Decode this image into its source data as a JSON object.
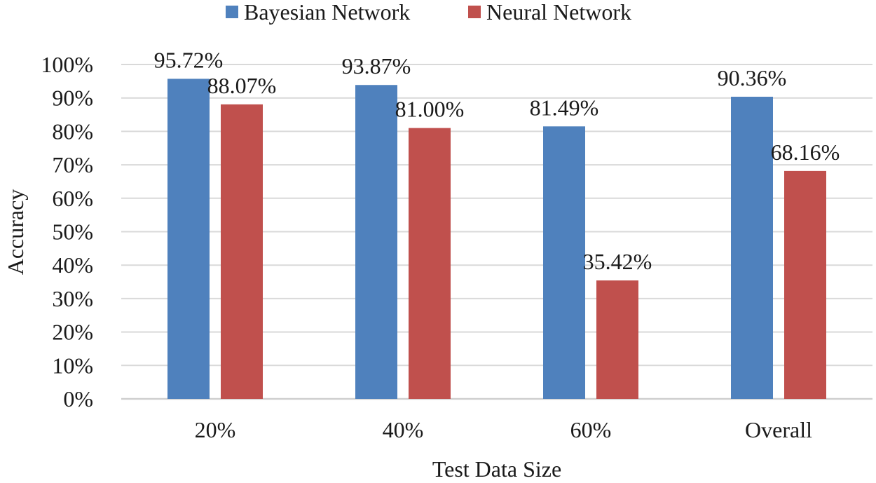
{
  "chart_data": {
    "type": "bar",
    "xlabel": "Test Data Size",
    "ylabel": "Accuracy",
    "categories": [
      "20%",
      "40%",
      "60%",
      "Overall"
    ],
    "series": [
      {
        "name": "Bayesian Network",
        "color": "#4F81BD",
        "values": [
          95.72,
          93.87,
          81.49,
          90.36
        ],
        "labels": [
          "95.72%",
          "93.87%",
          "81.49%",
          "90.36%"
        ]
      },
      {
        "name": "Neural Network",
        "color": "#C0504D",
        "values": [
          88.07,
          81.0,
          35.42,
          68.16
        ],
        "labels": [
          "88.07%",
          "81.00%",
          "35.42%",
          "68.16%"
        ]
      }
    ],
    "ylim": [
      0,
      100
    ],
    "yticks": [
      "0%",
      "10%",
      "20%",
      "30%",
      "40%",
      "50%",
      "60%",
      "70%",
      "80%",
      "90%",
      "100%"
    ],
    "grid": true,
    "legend_position": "top-center"
  }
}
